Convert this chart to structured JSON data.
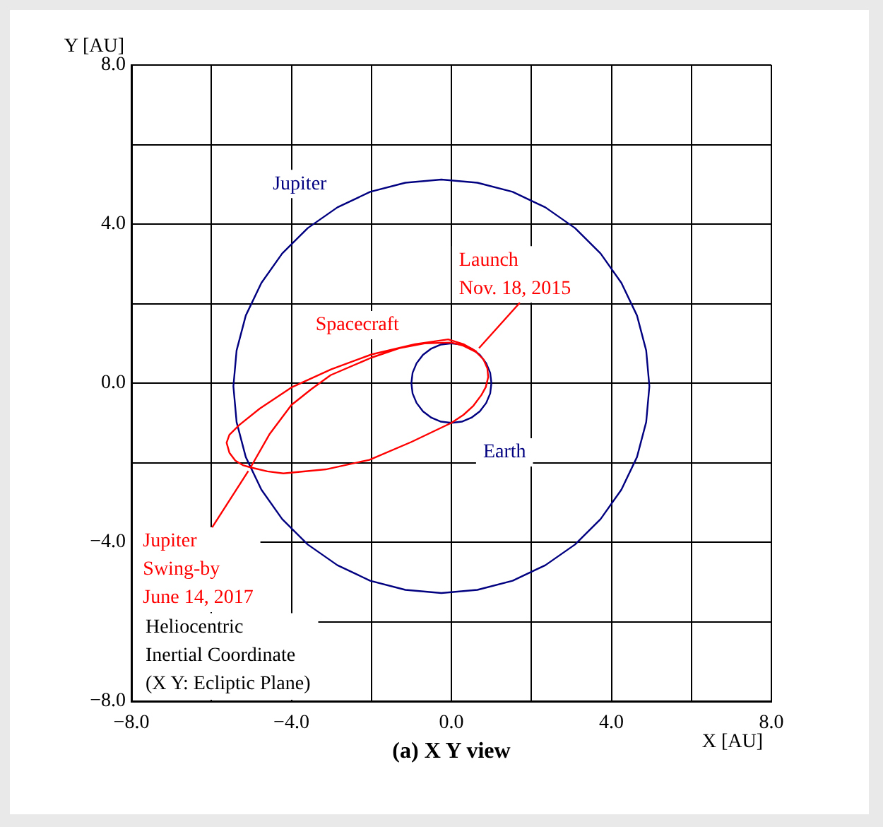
{
  "chart_data": {
    "type": "line",
    "title": "(a) X Y view",
    "xlabel": "X [AU]",
    "ylabel": "Y [AU]",
    "annotations": [
      {
        "text": "Launch\nNov. 18, 2015",
        "x": 0.62,
        "y": 0.8
      },
      {
        "text": "Jupiter\nSwing-by\nJune 14, 2017",
        "x": -5.02,
        "y": -2.12
      },
      "Heliocentric\nInertial Coordinate\n(X Y: Ecliptic Plane)"
    ],
    "xlim": [
      -8,
      8
    ],
    "ylim": [
      -8,
      8
    ],
    "xticks": [
      {
        "value": -8,
        "label": "−8.0"
      },
      {
        "value": -6,
        "label": null
      },
      {
        "value": -4,
        "label": "−4.0"
      },
      {
        "value": -2,
        "label": null
      },
      {
        "value": 0,
        "label": "0.0"
      },
      {
        "value": 2,
        "label": null
      },
      {
        "value": 4,
        "label": "4.0"
      },
      {
        "value": 6,
        "label": null
      },
      {
        "value": 8,
        "label": "8.0"
      }
    ],
    "yticks": [
      {
        "value": -8,
        "label": "−8.0"
      },
      {
        "value": -6,
        "label": null
      },
      {
        "value": -4,
        "label": "−4.0"
      },
      {
        "value": -2,
        "label": null
      },
      {
        "value": 0,
        "label": "0.0"
      },
      {
        "value": 2,
        "label": null
      },
      {
        "value": 4,
        "label": "4.0"
      },
      {
        "value": 6,
        "label": null
      },
      {
        "value": 8,
        "label": "8.0"
      }
    ],
    "grid": true,
    "marker": "none",
    "series": [
      {
        "name": "Jupiter",
        "color": "#000080",
        "x": [
          4.95,
          4.87,
          4.64,
          4.25,
          3.73,
          3.09,
          2.35,
          1.53,
          0.65,
          -0.25,
          -1.15,
          -2.03,
          -2.85,
          -3.59,
          -4.23,
          -4.75,
          -5.14,
          -5.37,
          -5.45,
          -5.37,
          -5.14,
          -4.75,
          -4.23,
          -3.59,
          -2.85,
          -2.03,
          -1.15,
          -0.25,
          0.65,
          1.53,
          2.35,
          3.09,
          3.73,
          4.25,
          4.64,
          4.87,
          4.95,
          4.87
        ],
        "values": [
          -0.08,
          0.82,
          1.7,
          2.52,
          3.26,
          3.9,
          4.42,
          4.81,
          5.04,
          5.12,
          5.04,
          4.81,
          4.42,
          3.9,
          3.26,
          2.52,
          1.7,
          0.82,
          -0.08,
          -0.98,
          -1.86,
          -2.68,
          -3.42,
          -4.06,
          -4.58,
          -4.97,
          -5.2,
          -5.28,
          -5.2,
          -4.97,
          -4.58,
          -4.06,
          -3.42,
          -2.68,
          -1.86,
          -0.98,
          -0.08,
          0.82
        ]
      },
      {
        "name": "Earth",
        "color": "#000080",
        "x": [
          1,
          0.97,
          0.87,
          0.71,
          0.5,
          0.26,
          0,
          -0.26,
          -0.5,
          -0.71,
          -0.87,
          -0.97,
          -1,
          -0.97,
          -0.87,
          -0.71,
          -0.5,
          -0.26,
          0,
          0.26,
          0.5,
          0.71,
          0.87,
          0.97,
          1,
          0.97
        ],
        "values": [
          0,
          0.26,
          0.5,
          0.71,
          0.87,
          0.97,
          1,
          0.97,
          0.87,
          0.71,
          0.5,
          0.26,
          0,
          -0.26,
          -0.5,
          -0.71,
          -0.87,
          -0.97,
          -1,
          -0.97,
          -0.87,
          -0.71,
          -0.5,
          -0.26,
          0,
          0.26
        ]
      },
      {
        "name": "Spacecraft",
        "color": "#ff0000",
        "x": [
          0.62,
          0.3,
          -0.08,
          -0.91,
          -2.0,
          -3.0,
          -4.0,
          -4.79,
          -5.3,
          -5.55,
          -5.62,
          -5.55,
          -5.4,
          -5.2,
          -5.02,
          -4.6,
          -4.2,
          -3.14,
          -2.05,
          -1.0,
          0.0,
          0.3,
          0.55,
          0.75,
          0.86,
          0.92,
          0.9,
          0.8,
          0.62,
          0.3,
          0.0,
          -0.67,
          -1.3,
          -2.0,
          -3.02,
          -3.5,
          -4.0,
          -4.55,
          -5.02
        ],
        "values": [
          0.8,
          0.98,
          1.1,
          0.98,
          0.72,
          0.35,
          -0.11,
          -0.64,
          -1.05,
          -1.3,
          -1.5,
          -1.75,
          -1.95,
          -2.07,
          -2.12,
          -2.22,
          -2.27,
          -2.17,
          -1.93,
          -1.48,
          -1.0,
          -0.8,
          -0.57,
          -0.3,
          -0.1,
          0.15,
          0.37,
          0.6,
          0.78,
          0.94,
          1.02,
          1.0,
          0.88,
          0.64,
          0.2,
          -0.15,
          -0.55,
          -1.29,
          -2.12
        ]
      }
    ]
  }
}
